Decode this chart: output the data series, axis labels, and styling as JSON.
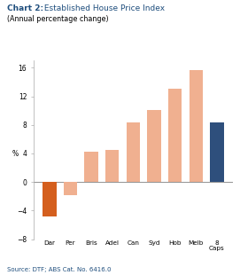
{
  "title_bold": "Chart 2:",
  "title_normal": " Established House Price Index",
  "subtitle": "(Annual percentage change)",
  "ylabel": "%",
  "categories": [
    "Dar",
    "Per",
    "Bris",
    "Adel",
    "Can",
    "Syd",
    "Hob",
    "Melb",
    "8\nCaps"
  ],
  "values": [
    -4.8,
    -1.8,
    4.2,
    4.5,
    8.3,
    10.1,
    13.0,
    15.7,
    8.3
  ],
  "bar_colors": [
    "#d45f1e",
    "#f0b090",
    "#f0b090",
    "#f0b090",
    "#f0b090",
    "#f0b090",
    "#f0b090",
    "#f0b090",
    "#2e4f7c"
  ],
  "ylim": [
    -8,
    17
  ],
  "yticks": [
    -8,
    -4,
    0,
    4,
    8,
    12,
    16
  ],
  "source": "Source: DTF; ABS Cat. No. 6416.0",
  "title_color": "#1f4e7d",
  "source_color": "#1f4e7d",
  "background_color": "#ffffff"
}
